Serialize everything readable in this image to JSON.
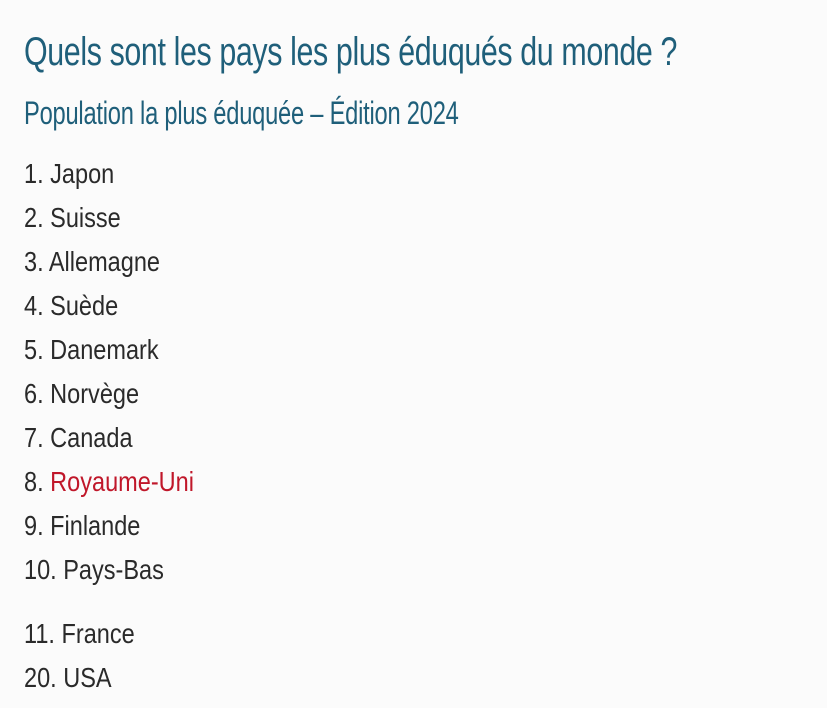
{
  "title": "Quels sont les pays les plus éduqués du monde ?",
  "subtitle": "Population la plus éduquée – Édition 2024",
  "ranking": [
    {
      "rank": "1.",
      "country": "Japon"
    },
    {
      "rank": "2.",
      "country": "Suisse"
    },
    {
      "rank": "3.",
      "country": "Allemagne"
    },
    {
      "rank": "4.",
      "country": "Suède"
    },
    {
      "rank": "5.",
      "country": "Danemark"
    },
    {
      "rank": "6.",
      "country": "Norvège"
    },
    {
      "rank": "7.",
      "country": "Canada"
    },
    {
      "rank": "8.",
      "country": "Royaume-Uni",
      "highlight": true
    },
    {
      "rank": "9.",
      "country": "Finlande"
    },
    {
      "rank": "10.",
      "country": "Pays-Bas"
    },
    {
      "rank": "11.",
      "country": "France"
    },
    {
      "rank": "20.",
      "country": "USA"
    }
  ],
  "colors": {
    "heading": "#1f5f7a",
    "text": "#2a2a2a",
    "highlight": "#c0172a",
    "background": "#fbfbfb"
  }
}
